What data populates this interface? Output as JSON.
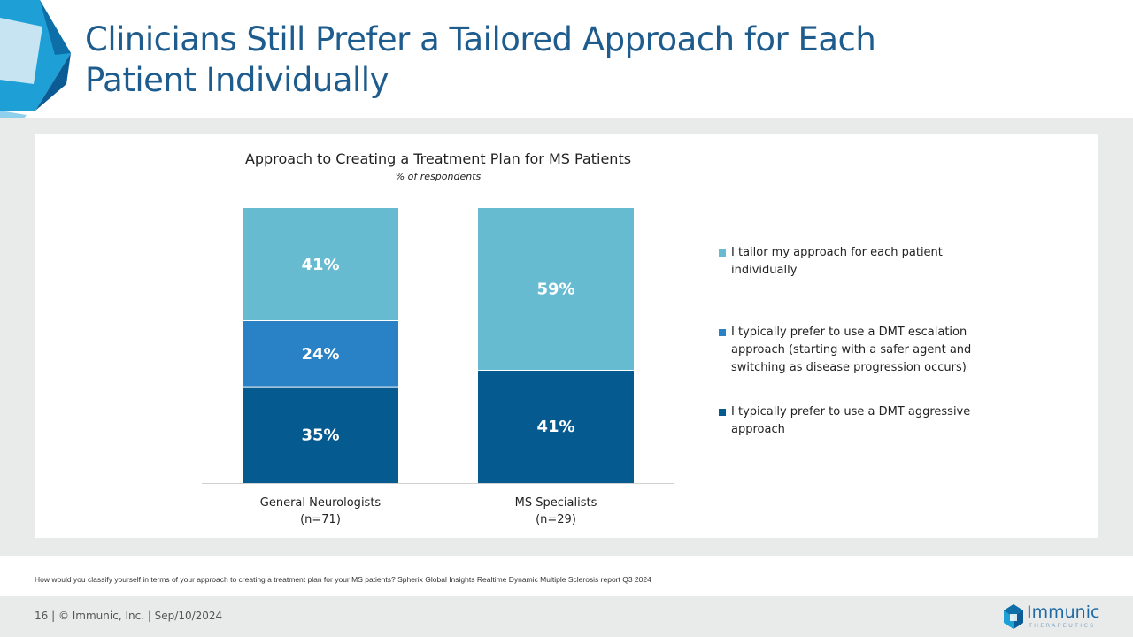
{
  "slide": {
    "title": "Clinicians Still Prefer a Tailored Approach for Each Patient Individually",
    "footnote": "How would you classify yourself in terms of your approach to creating a treatment plan for your MS patients? Spherix Global Insights Realtime Dynamic Multiple Sclerosis report Q3 2024",
    "footer": "16   |  © Immunic, Inc.   | Sep/10/2024",
    "logo": {
      "name": "Immunic",
      "sub": "THERAPEUTICS"
    }
  },
  "colors": {
    "title": "#1f5c8e",
    "tailor": "#66bbd0",
    "escalation": "#2a82c6",
    "aggressive": "#055a8f"
  },
  "chart_data": {
    "type": "bar",
    "stacked": true,
    "title": "Approach to Creating a Treatment Plan for MS Patients",
    "subtitle": "% of respondents",
    "categories": [
      {
        "line1": "General Neurologists",
        "line2": "(n=71)"
      },
      {
        "line1": "MS Specialists",
        "line2": "(n=29)"
      }
    ],
    "series": [
      {
        "name": "I typically prefer to use a DMT aggressive approach",
        "key": "aggressive",
        "values": [
          35,
          41
        ],
        "labels": [
          "35%",
          "41%"
        ]
      },
      {
        "name": "I typically prefer to use a DMT escalation approach (starting with a safer agent and switching as disease progression occurs)",
        "key": "escalation",
        "values": [
          24,
          0
        ],
        "labels": [
          "24%",
          ""
        ]
      },
      {
        "name": "I tailor my approach for each patient individually",
        "key": "tailor",
        "values": [
          41,
          59
        ],
        "labels": [
          "41%",
          "59%"
        ]
      }
    ],
    "ylim": [
      0,
      100
    ],
    "legend": [
      {
        "key": "tailor",
        "text": "I tailor my approach for each patient individually"
      },
      {
        "key": "escalation",
        "text": "I typically prefer to use a DMT escalation approach (starting with a safer agent and switching as disease progression occurs)"
      },
      {
        "key": "aggressive",
        "text": "I typically prefer to use a DMT aggressive approach"
      }
    ]
  }
}
